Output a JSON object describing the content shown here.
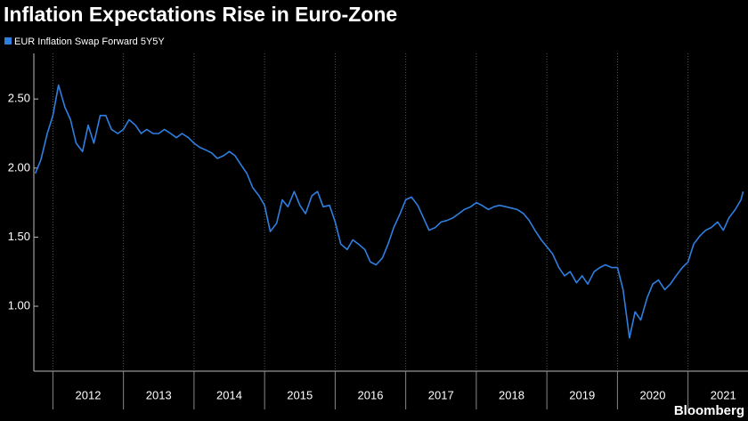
{
  "chart_data": {
    "type": "line",
    "title": "Inflation Expectations Rise in Euro-Zone",
    "source": "Bloomberg",
    "x": [
      2011.75,
      2011.83,
      2011.92,
      2012.0,
      2012.08,
      2012.17,
      2012.25,
      2012.33,
      2012.42,
      2012.5,
      2012.58,
      2012.67,
      2012.75,
      2012.83,
      2012.92,
      2013.0,
      2013.08,
      2013.17,
      2013.25,
      2013.33,
      2013.42,
      2013.5,
      2013.58,
      2013.67,
      2013.75,
      2013.83,
      2013.92,
      2014.0,
      2014.08,
      2014.17,
      2014.25,
      2014.33,
      2014.42,
      2014.5,
      2014.58,
      2014.67,
      2014.75,
      2014.83,
      2014.92,
      2015.0,
      2015.08,
      2015.17,
      2015.25,
      2015.33,
      2015.42,
      2015.5,
      2015.58,
      2015.67,
      2015.75,
      2015.83,
      2015.92,
      2016.0,
      2016.08,
      2016.17,
      2016.25,
      2016.33,
      2016.42,
      2016.5,
      2016.58,
      2016.67,
      2016.75,
      2016.83,
      2016.92,
      2017.0,
      2017.08,
      2017.17,
      2017.25,
      2017.33,
      2017.42,
      2017.5,
      2017.58,
      2017.67,
      2017.75,
      2017.83,
      2017.92,
      2018.0,
      2018.08,
      2018.17,
      2018.25,
      2018.33,
      2018.42,
      2018.5,
      2018.58,
      2018.67,
      2018.75,
      2018.83,
      2018.92,
      2019.0,
      2019.08,
      2019.17,
      2019.25,
      2019.33,
      2019.42,
      2019.5,
      2019.58,
      2019.67,
      2019.75,
      2019.83,
      2019.92,
      2020.0,
      2020.08,
      2020.17,
      2020.25,
      2020.33,
      2020.42,
      2020.5,
      2020.58,
      2020.67,
      2020.75,
      2020.83,
      2020.92,
      2021.0,
      2021.08,
      2021.17,
      2021.25,
      2021.33,
      2021.42,
      2021.5,
      2021.58,
      2021.67,
      2021.75,
      2021.78
    ],
    "series": [
      {
        "name": "EUR Inflation Swap Forward 5Y5Y",
        "color": "#2f7fe0",
        "values": [
          1.96,
          2.06,
          2.25,
          2.38,
          2.6,
          2.44,
          2.35,
          2.18,
          2.12,
          2.31,
          2.18,
          2.38,
          2.38,
          2.28,
          2.25,
          2.28,
          2.35,
          2.31,
          2.25,
          2.28,
          2.25,
          2.25,
          2.28,
          2.25,
          2.22,
          2.25,
          2.22,
          2.18,
          2.15,
          2.13,
          2.11,
          2.07,
          2.09,
          2.12,
          2.09,
          2.02,
          1.96,
          1.86,
          1.8,
          1.73,
          1.54,
          1.6,
          1.77,
          1.72,
          1.83,
          1.73,
          1.67,
          1.8,
          1.83,
          1.72,
          1.73,
          1.61,
          1.45,
          1.41,
          1.48,
          1.45,
          1.41,
          1.32,
          1.3,
          1.35,
          1.45,
          1.57,
          1.67,
          1.77,
          1.79,
          1.73,
          1.64,
          1.55,
          1.57,
          1.61,
          1.62,
          1.64,
          1.67,
          1.7,
          1.72,
          1.75,
          1.73,
          1.7,
          1.72,
          1.73,
          1.72,
          1.71,
          1.7,
          1.67,
          1.62,
          1.55,
          1.48,
          1.43,
          1.38,
          1.28,
          1.22,
          1.25,
          1.17,
          1.22,
          1.16,
          1.25,
          1.28,
          1.3,
          1.28,
          1.28,
          1.12,
          0.77,
          0.96,
          0.9,
          1.06,
          1.16,
          1.19,
          1.12,
          1.16,
          1.22,
          1.28,
          1.32,
          1.45,
          1.51,
          1.55,
          1.57,
          1.61,
          1.55,
          1.64,
          1.7,
          1.77,
          1.83
        ]
      }
    ],
    "xlim": [
      2011.73,
      2021.85
    ],
    "xticks": [
      2012,
      2013,
      2014,
      2015,
      2016,
      2017,
      2018,
      2019,
      2020,
      2021
    ],
    "ylim": [
      0.53,
      2.83
    ],
    "yticks": [
      {
        "value": 1.0,
        "label": "1.00"
      },
      {
        "value": 1.5,
        "label": "1.50"
      },
      {
        "value": 2.0,
        "label": "2.00"
      },
      {
        "value": 2.5,
        "label": "2.50"
      }
    ],
    "grid": true
  }
}
